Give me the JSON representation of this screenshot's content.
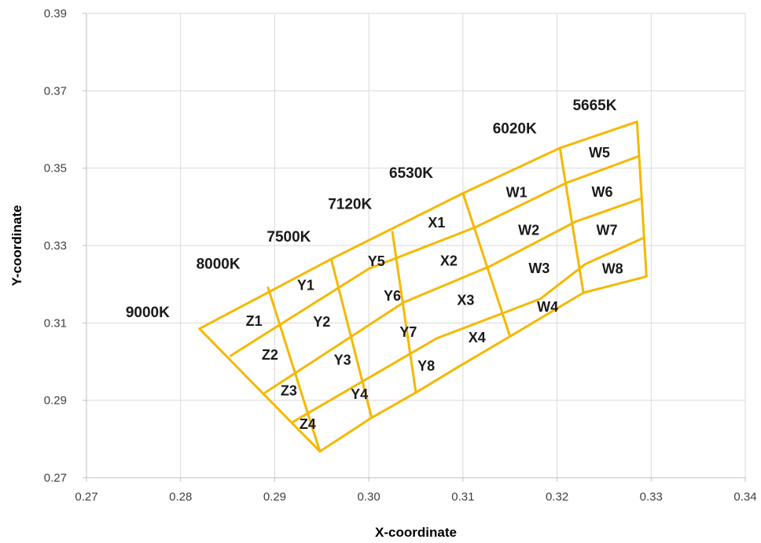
{
  "chart_data": {
    "type": "line",
    "xlabel": "X-coordinate",
    "ylabel": "Y-coordinate",
    "xlim": [
      0.27,
      0.34
    ],
    "ylim": [
      0.27,
      0.39
    ],
    "xticks": [
      "0.27",
      "0.28",
      "0.29",
      "0.30",
      "0.31",
      "0.32",
      "0.33",
      "0.34"
    ],
    "yticks": [
      "0.27",
      "0.29",
      "0.31",
      "0.33",
      "0.35",
      "0.37",
      "0.39"
    ],
    "grid": true,
    "line_color": "#f5b800",
    "polylines": [
      {
        "points": [
          [
            0.282,
            0.3085
          ],
          [
            0.296,
            0.3265
          ],
          [
            0.31,
            0.3435
          ],
          [
            0.3203,
            0.3552
          ],
          [
            0.3285,
            0.362
          ],
          [
            0.3295,
            0.322
          ],
          [
            0.3228,
            0.3178
          ],
          [
            0.315,
            0.3065
          ],
          [
            0.3094,
            0.2985
          ],
          [
            0.305,
            0.292
          ],
          [
            0.3003,
            0.2855
          ],
          [
            0.2948,
            0.2768
          ],
          [
            0.282,
            0.3085
          ]
        ]
      },
      {
        "points": [
          [
            0.2853,
            0.3015
          ],
          [
            0.3,
            0.324
          ],
          [
            0.3113,
            0.3347
          ],
          [
            0.321,
            0.3462
          ],
          [
            0.3286,
            0.353
          ]
        ]
      },
      {
        "points": [
          [
            0.289,
            0.292
          ],
          [
            0.3037,
            0.3153
          ],
          [
            0.313,
            0.3248
          ],
          [
            0.322,
            0.3362
          ],
          [
            0.329,
            0.3422
          ]
        ]
      },
      {
        "points": [
          [
            0.292,
            0.2845
          ],
          [
            0.3072,
            0.306
          ],
          [
            0.3182,
            0.3162
          ],
          [
            0.323,
            0.3252
          ],
          [
            0.3292,
            0.332
          ]
        ]
      },
      {
        "points": [
          [
            0.2893,
            0.3191
          ],
          [
            0.2948,
            0.2768
          ]
        ]
      },
      {
        "points": [
          [
            0.296,
            0.3265
          ],
          [
            0.3003,
            0.2855
          ]
        ]
      },
      {
        "points": [
          [
            0.3025,
            0.3335
          ],
          [
            0.305,
            0.292
          ]
        ]
      },
      {
        "points": [
          [
            0.31,
            0.3435
          ],
          [
            0.315,
            0.3065
          ]
        ]
      },
      {
        "points": [
          [
            0.3203,
            0.3552
          ],
          [
            0.3228,
            0.3178
          ]
        ]
      }
    ],
    "cct_labels": [
      {
        "text": "9000K",
        "x": 0.2765,
        "y": 0.3115
      },
      {
        "text": "8000K",
        "x": 0.284,
        "y": 0.324
      },
      {
        "text": "7500K",
        "x": 0.2915,
        "y": 0.331
      },
      {
        "text": "7120K",
        "x": 0.298,
        "y": 0.3395
      },
      {
        "text": "6530K",
        "x": 0.3045,
        "y": 0.3475
      },
      {
        "text": "6020K",
        "x": 0.3155,
        "y": 0.359
      },
      {
        "text": "5665K",
        "x": 0.324,
        "y": 0.365
      }
    ],
    "bin_labels": [
      {
        "text": "W5",
        "x": 0.3245,
        "y": 0.3537
      },
      {
        "text": "W6",
        "x": 0.3248,
        "y": 0.3436
      },
      {
        "text": "W7",
        "x": 0.3253,
        "y": 0.3337
      },
      {
        "text": "W8",
        "x": 0.3259,
        "y": 0.3237
      },
      {
        "text": "W1",
        "x": 0.3157,
        "y": 0.3435
      },
      {
        "text": "W2",
        "x": 0.317,
        "y": 0.3337
      },
      {
        "text": "W3",
        "x": 0.3181,
        "y": 0.3238
      },
      {
        "text": "W4",
        "x": 0.319,
        "y": 0.3139
      },
      {
        "text": "X1",
        "x": 0.3072,
        "y": 0.3356
      },
      {
        "text": "X2",
        "x": 0.3085,
        "y": 0.3258
      },
      {
        "text": "X3",
        "x": 0.3103,
        "y": 0.3156
      },
      {
        "text": "X4",
        "x": 0.3115,
        "y": 0.306
      },
      {
        "text": "Y5",
        "x": 0.3008,
        "y": 0.3257
      },
      {
        "text": "Y6",
        "x": 0.3025,
        "y": 0.3167
      },
      {
        "text": "Y7",
        "x": 0.3042,
        "y": 0.3074
      },
      {
        "text": "Y8",
        "x": 0.3061,
        "y": 0.2986
      },
      {
        "text": "Y1",
        "x": 0.2933,
        "y": 0.3195
      },
      {
        "text": "Y2",
        "x": 0.295,
        "y": 0.31
      },
      {
        "text": "Y3",
        "x": 0.2972,
        "y": 0.3002
      },
      {
        "text": "Y4",
        "x": 0.299,
        "y": 0.2913
      },
      {
        "text": "Z1",
        "x": 0.2878,
        "y": 0.3102
      },
      {
        "text": "Z2",
        "x": 0.2895,
        "y": 0.3015
      },
      {
        "text": "Z3",
        "x": 0.2915,
        "y": 0.2922
      },
      {
        "text": "Z4",
        "x": 0.2935,
        "y": 0.2836
      }
    ]
  }
}
